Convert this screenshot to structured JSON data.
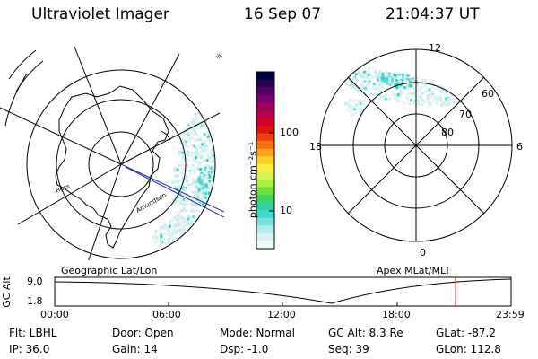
{
  "header": {
    "instrument": "Ultraviolet Imager",
    "date": "16 Sep 07",
    "time": "21:04:37 UT"
  },
  "colorbar": {
    "label": "photon cm⁻²s⁻¹",
    "ticks": [
      "100",
      "10"
    ],
    "colors": [
      "#000040",
      "#2a0050",
      "#55006a",
      "#7a0070",
      "#9a0060",
      "#b80048",
      "#d0002a",
      "#e41010",
      "#f04010",
      "#f87010",
      "#fca020",
      "#fcd020",
      "#f8f040",
      "#d8f050",
      "#a8f040",
      "#70e040",
      "#40d060",
      "#30d0a0",
      "#40d8d0",
      "#80e0e0",
      "#b0ecec",
      "#d8f4f4",
      "#f0fafa"
    ]
  },
  "left_map": {
    "label": "Geographic Lat/Lon",
    "logo": "☼",
    "place_labels": [
      "Ross",
      "Amundsen"
    ]
  },
  "right_map": {
    "label": "Apex MLat/MLT",
    "lat_labels": [
      "60",
      "70",
      "80"
    ],
    "mlt_labels": {
      "top": "12",
      "left": "18",
      "right": "6",
      "bottom": "0"
    }
  },
  "altitude_plot": {
    "ylabel": "GC Alt",
    "yticks": [
      "9.0",
      "1.8"
    ],
    "xticks": [
      "00:00",
      "06:00",
      "12:00",
      "18:00",
      "23:59"
    ],
    "current_time_hours": 21.08
  },
  "info": {
    "filter": "Flt: LBHL",
    "ip": "IP: 36.0",
    "door": "Door: Open",
    "gain": "Gain: 14",
    "mode": "Mode: Normal",
    "dsp": "Dsp:   -1.0",
    "gc_alt": "GC Alt: 8.3 Re",
    "seq": "Seq: 39",
    "glat": "GLat: -87.2",
    "glon": "GLon: 112.8"
  }
}
